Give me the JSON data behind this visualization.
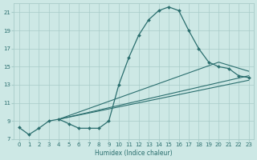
{
  "xlabel": "Humidex (Indice chaleur)",
  "xlim": [
    -0.5,
    23.5
  ],
  "ylim": [
    7,
    22
  ],
  "yticks": [
    7,
    9,
    11,
    13,
    15,
    17,
    19,
    21
  ],
  "xticks": [
    0,
    1,
    2,
    3,
    4,
    5,
    6,
    7,
    8,
    9,
    10,
    11,
    12,
    13,
    14,
    15,
    16,
    17,
    18,
    19,
    20,
    21,
    22,
    23
  ],
  "bg_color": "#cde8e5",
  "grid_color": "#a8ccc9",
  "line_color": "#2a6e6e",
  "line1_x": [
    0,
    1,
    2,
    3,
    4,
    5,
    6,
    7,
    8,
    9,
    10,
    11,
    12,
    13,
    14,
    15,
    16,
    17,
    18,
    19,
    20,
    21,
    22,
    23
  ],
  "line1_y": [
    8.3,
    7.5,
    8.2,
    9.0,
    9.2,
    8.7,
    8.2,
    8.2,
    8.2,
    9.0,
    13.0,
    16.0,
    18.5,
    20.2,
    21.2,
    21.6,
    21.2,
    19.0,
    17.0,
    15.5,
    15.0,
    14.8,
    14.0,
    13.8
  ],
  "straight_lines": [
    {
      "x": [
        4,
        23
      ],
      "y": [
        9.2,
        13.5
      ]
    },
    {
      "x": [
        4,
        23
      ],
      "y": [
        9.2,
        14.0
      ]
    },
    {
      "x": [
        4,
        20,
        23
      ],
      "y": [
        9.2,
        15.5,
        14.5
      ]
    }
  ]
}
